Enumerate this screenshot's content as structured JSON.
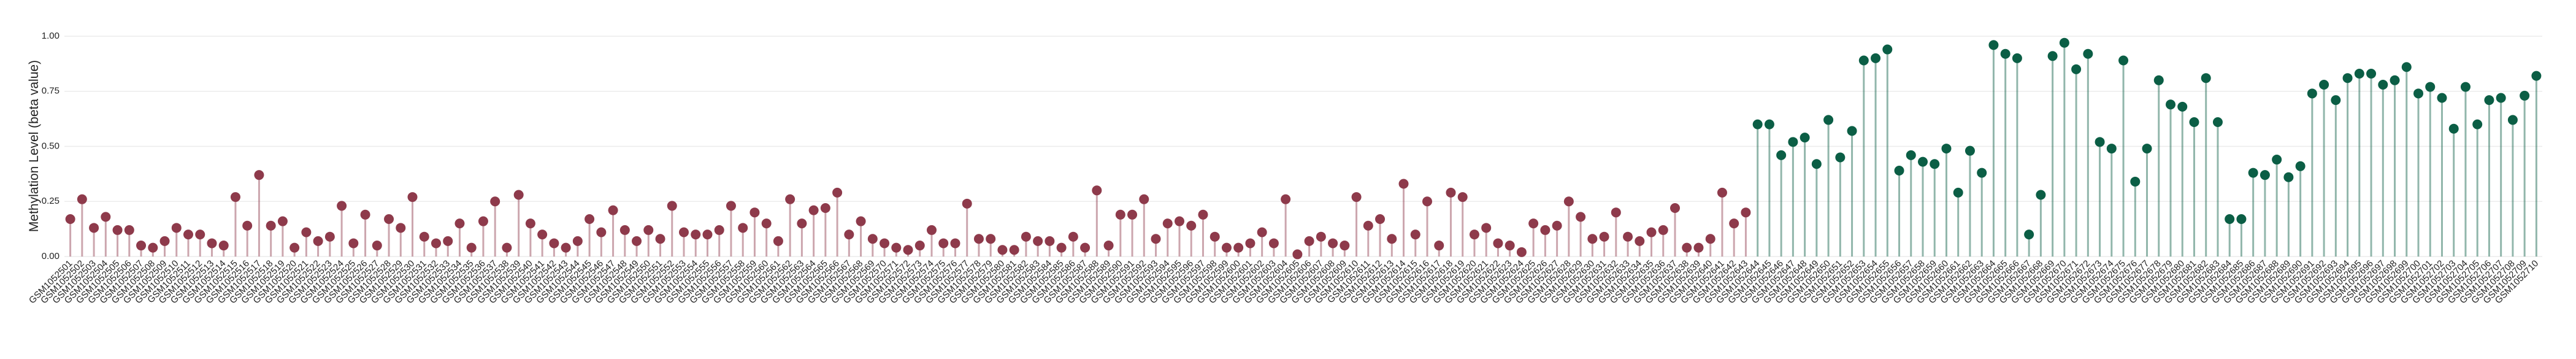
{
  "chart_data": {
    "type": "lollipop",
    "y_label": "Methylation Level (beta value)",
    "ylim": [
      0,
      1
    ],
    "yticks": [
      {
        "value": 0,
        "label": "0.00"
      },
      {
        "value": 0.25,
        "label": "0.25"
      },
      {
        "value": 0.5,
        "label": "0.50"
      },
      {
        "value": 0.75,
        "label": "0.75"
      },
      {
        "value": 1,
        "label": "1.00"
      }
    ],
    "grid": true,
    "categories": [
      "GSM1052501",
      "GSM1052502",
      "GSM1052503",
      "GSM1052504",
      "GSM1052505",
      "GSM1052506",
      "GSM1052507",
      "GSM1052508",
      "GSM1052509",
      "GSM1052510",
      "GSM1052511",
      "GSM1052512",
      "GSM1052513",
      "GSM1052514",
      "GSM1052515",
      "GSM1052516",
      "GSM1052517",
      "GSM1052518",
      "GSM1052519",
      "GSM1052520",
      "GSM1052521",
      "GSM1052522",
      "GSM1052523",
      "GSM1052524",
      "GSM1052525",
      "GSM1052526",
      "GSM1052527",
      "GSM1052528",
      "GSM1052529",
      "GSM1052530",
      "GSM1052531",
      "GSM1052532",
      "GSM1052533",
      "GSM1052534",
      "GSM1052535",
      "GSM1052536",
      "GSM1052537",
      "GSM1052538",
      "GSM1052539",
      "GSM1052540",
      "GSM1052541",
      "GSM1052542",
      "GSM1052543",
      "GSM1052544",
      "GSM1052545",
      "GSM1052546",
      "GSM1052547",
      "GSM1052548",
      "GSM1052549",
      "GSM1052550",
      "GSM1052551",
      "GSM1052552",
      "GSM1052553",
      "GSM1052554",
      "GSM1052555",
      "GSM1052556",
      "GSM1052557",
      "GSM1052558",
      "GSM1052559",
      "GSM1052560",
      "GSM1052561",
      "GSM1052562",
      "GSM1052563",
      "GSM1052564",
      "GSM1052565",
      "GSM1052566",
      "GSM1052567",
      "GSM1052568",
      "GSM1052569",
      "GSM1052570",
      "GSM1052571",
      "GSM1052572",
      "GSM1052573",
      "GSM1052574",
      "GSM1052575",
      "GSM1052576",
      "GSM1052577",
      "GSM1052578",
      "GSM1052579",
      "GSM1052580",
      "GSM1052581",
      "GSM1052582",
      "GSM1052583",
      "GSM1052584",
      "GSM1052585",
      "GSM1052586",
      "GSM1052587",
      "GSM1052588",
      "GSM1052589",
      "GSM1052590",
      "GSM1052591",
      "GSM1052592",
      "GSM1052593",
      "GSM1052594",
      "GSM1052595",
      "GSM1052596",
      "GSM1052597",
      "GSM1052598",
      "GSM1052599",
      "GSM1052600",
      "GSM1052601",
      "GSM1052602",
      "GSM1052603",
      "GSM1052604",
      "GSM1052605",
      "GSM1052606",
      "GSM1052607",
      "GSM1052608",
      "GSM1052609",
      "GSM1052610",
      "GSM1052611",
      "GSM1052612",
      "GSM1052613",
      "GSM1052614",
      "GSM1052615",
      "GSM1052616",
      "GSM1052617",
      "GSM1052618",
      "GSM1052619",
      "GSM1052620",
      "GSM1052621",
      "GSM1052622",
      "GSM1052623",
      "GSM1052624",
      "GSM1052625",
      "GSM1052626",
      "GSM1052627",
      "GSM1052628",
      "GSM1052629",
      "GSM1052630",
      "GSM1052631",
      "GSM1052632",
      "GSM1052633",
      "GSM1052634",
      "GSM1052635",
      "GSM1052636",
      "GSM1052637",
      "GSM1052638",
      "GSM1052639",
      "GSM1052640",
      "GSM1052641",
      "GSM1052642",
      "GSM1052643",
      "GSM1052644",
      "GSM1052645",
      "GSM1052646",
      "GSM1052647",
      "GSM1052648",
      "GSM1052649",
      "GSM1052650",
      "GSM1052651",
      "GSM1052652",
      "GSM1052653",
      "GSM1052654",
      "GSM1052655",
      "GSM1052656",
      "GSM1052657",
      "GSM1052658",
      "GSM1052659",
      "GSM1052660",
      "GSM1052661",
      "GSM1052662",
      "GSM1052663",
      "GSM1052664",
      "GSM1052665",
      "GSM1052666",
      "GSM1052667",
      "GSM1052668",
      "GSM1052669",
      "GSM1052670",
      "GSM1052671",
      "GSM1052672",
      "GSM1052673",
      "GSM1052674",
      "GSM1052675",
      "GSM1052676",
      "GSM1052677",
      "GSM1052678",
      "GSM1052679",
      "GSM1052680",
      "GSM1052681",
      "GSM1052682",
      "GSM1052683",
      "GSM1052684",
      "GSM1052685",
      "GSM1052686",
      "GSM1052687",
      "GSM1052688",
      "GSM1052689",
      "GSM1052690",
      "GSM1052691",
      "GSM1052692",
      "GSM1052693",
      "GSM1052694",
      "GSM1052695",
      "GSM1052696",
      "GSM1052697",
      "GSM1052698",
      "GSM1052699",
      "GSM1052700",
      "GSM1052701",
      "GSM1052702",
      "GSM1052703",
      "GSM1052704",
      "GSM1052705",
      "GSM1052706",
      "GSM1052707",
      "GSM1052708",
      "GSM1052709",
      "GSM1052710"
    ],
    "values": [
      0.17,
      0.26,
      0.13,
      0.18,
      0.12,
      0.12,
      0.05,
      0.04,
      0.07,
      0.13,
      0.1,
      0.1,
      0.06,
      0.05,
      0.27,
      0.14,
      0.37,
      0.14,
      0.16,
      0.04,
      0.11,
      0.07,
      0.09,
      0.23,
      0.06,
      0.19,
      0.05,
      0.17,
      0.13,
      0.27,
      0.09,
      0.06,
      0.07,
      0.15,
      0.04,
      0.16,
      0.25,
      0.04,
      0.28,
      0.15,
      0.1,
      0.06,
      0.04,
      0.07,
      0.17,
      0.11,
      0.21,
      0.12,
      0.07,
      0.12,
      0.08,
      0.23,
      0.11,
      0.1,
      0.1,
      0.12,
      0.23,
      0.13,
      0.2,
      0.15,
      0.07,
      0.26,
      0.15,
      0.21,
      0.22,
      0.29,
      0.1,
      0.16,
      0.08,
      0.06,
      0.04,
      0.03,
      0.05,
      0.12,
      0.06,
      0.06,
      0.24,
      0.08,
      0.08,
      0.03,
      0.03,
      0.09,
      0.07,
      0.07,
      0.04,
      0.09,
      0.04,
      0.3,
      0.05,
      0.19,
      0.19,
      0.26,
      0.08,
      0.15,
      0.16,
      0.14,
      0.19,
      0.09,
      0.04,
      0.04,
      0.06,
      0.11,
      0.06,
      0.26,
      0.01,
      0.07,
      0.09,
      0.06,
      0.05,
      0.27,
      0.14,
      0.17,
      0.08,
      0.33,
      0.1,
      0.25,
      0.05,
      0.29,
      0.27,
      0.1,
      0.13,
      0.06,
      0.05,
      0.02,
      0.15,
      0.12,
      0.14,
      0.25,
      0.18,
      0.08,
      0.09,
      0.2,
      0.09,
      0.07,
      0.11,
      0.12,
      0.22,
      0.04,
      0.04,
      0.08,
      0.29,
      0.15,
      0.2,
      0.6,
      0.6,
      0.46,
      0.52,
      0.54,
      0.42,
      0.62,
      0.45,
      0.57,
      0.89,
      0.9,
      0.94,
      0.39,
      0.46,
      0.43,
      0.42,
      0.49,
      0.29,
      0.48,
      0.38,
      0.96,
      0.92,
      0.9,
      0.1,
      0.28,
      0.91,
      0.97,
      0.85,
      0.92,
      0.52,
      0.49,
      0.89,
      0.34,
      0.49,
      0.8,
      0.69,
      0.68,
      0.61,
      0.81,
      0.61,
      0.17,
      0.17,
      0.38,
      0.37,
      0.44,
      0.36,
      0.41,
      0.74,
      0.78,
      0.71,
      0.81,
      0.83,
      0.83,
      0.78,
      0.8,
      0.86,
      0.74,
      0.77,
      0.72,
      0.58,
      0.77,
      0.6,
      0.71,
      0.72,
      0.62,
      0.73,
      0.82
    ],
    "colors": [
      "#8e3a4b",
      "#8e3a4b",
      "#8e3a4b",
      "#8e3a4b",
      "#8e3a4b",
      "#8e3a4b",
      "#8e3a4b",
      "#8e3a4b",
      "#8e3a4b",
      "#8e3a4b",
      "#8e3a4b",
      "#8e3a4b",
      "#8e3a4b",
      "#8e3a4b",
      "#8e3a4b",
      "#8e3a4b",
      "#8e3a4b",
      "#8e3a4b",
      "#8e3a4b",
      "#8e3a4b",
      "#8e3a4b",
      "#8e3a4b",
      "#8e3a4b",
      "#8e3a4b",
      "#8e3a4b",
      "#8e3a4b",
      "#8e3a4b",
      "#8e3a4b",
      "#8e3a4b",
      "#8e3a4b",
      "#8e3a4b",
      "#8e3a4b",
      "#8e3a4b",
      "#8e3a4b",
      "#8e3a4b",
      "#8e3a4b",
      "#8e3a4b",
      "#8e3a4b",
      "#8e3a4b",
      "#8e3a4b",
      "#8e3a4b",
      "#8e3a4b",
      "#8e3a4b",
      "#8e3a4b",
      "#8e3a4b",
      "#8e3a4b",
      "#8e3a4b",
      "#8e3a4b",
      "#8e3a4b",
      "#8e3a4b",
      "#8e3a4b",
      "#8e3a4b",
      "#8e3a4b",
      "#8e3a4b",
      "#8e3a4b",
      "#8e3a4b",
      "#8e3a4b",
      "#8e3a4b",
      "#8e3a4b",
      "#8e3a4b",
      "#8e3a4b",
      "#8e3a4b",
      "#8e3a4b",
      "#8e3a4b",
      "#8e3a4b",
      "#8e3a4b",
      "#8e3a4b",
      "#8e3a4b",
      "#8e3a4b",
      "#8e3a4b",
      "#8e3a4b",
      "#8e3a4b",
      "#8e3a4b",
      "#8e3a4b",
      "#8e3a4b",
      "#8e3a4b",
      "#8e3a4b",
      "#8e3a4b",
      "#8e3a4b",
      "#8e3a4b",
      "#8e3a4b",
      "#8e3a4b",
      "#8e3a4b",
      "#8e3a4b",
      "#8e3a4b",
      "#8e3a4b",
      "#8e3a4b",
      "#8e3a4b",
      "#8e3a4b",
      "#8e3a4b",
      "#8e3a4b",
      "#8e3a4b",
      "#8e3a4b",
      "#8e3a4b",
      "#8e3a4b",
      "#8e3a4b",
      "#8e3a4b",
      "#8e3a4b",
      "#8e3a4b",
      "#8e3a4b",
      "#8e3a4b",
      "#8e3a4b",
      "#8e3a4b",
      "#8e3a4b",
      "#8e3a4b",
      "#8e3a4b",
      "#8e3a4b",
      "#8e3a4b",
      "#8e3a4b",
      "#8e3a4b",
      "#8e3a4b",
      "#8e3a4b",
      "#8e3a4b",
      "#8e3a4b",
      "#8e3a4b",
      "#8e3a4b",
      "#8e3a4b",
      "#8e3a4b",
      "#8e3a4b",
      "#8e3a4b",
      "#8e3a4b",
      "#8e3a4b",
      "#8e3a4b",
      "#8e3a4b",
      "#8e3a4b",
      "#8e3a4b",
      "#8e3a4b",
      "#8e3a4b",
      "#8e3a4b",
      "#8e3a4b",
      "#8e3a4b",
      "#8e3a4b",
      "#8e3a4b",
      "#8e3a4b",
      "#8e3a4b",
      "#8e3a4b",
      "#8e3a4b",
      "#8e3a4b",
      "#8e3a4b",
      "#8e3a4b",
      "#8e3a4b",
      "#8e3a4b",
      "#8e3a4b",
      "#0b5e45",
      "#0b5e45",
      "#0b5e45",
      "#0b5e45",
      "#0b5e45",
      "#0b5e45",
      "#0b5e45",
      "#0b5e45",
      "#0b5e45",
      "#0b5e45",
      "#0b5e45",
      "#0b5e45",
      "#0b5e45",
      "#0b5e45",
      "#0b5e45",
      "#0b5e45",
      "#0b5e45",
      "#0b5e45",
      "#0b5e45",
      "#0b5e45",
      "#0b5e45",
      "#0b5e45",
      "#0b5e45",
      "#0b5e45",
      "#0b5e45",
      "#0b5e45",
      "#0b5e45",
      "#0b5e45",
      "#0b5e45",
      "#0b5e45",
      "#0b5e45",
      "#0b5e45",
      "#0b5e45",
      "#0b5e45",
      "#0b5e45",
      "#0b5e45",
      "#0b5e45",
      "#0b5e45",
      "#0b5e45",
      "#0b5e45",
      "#0b5e45",
      "#0b5e45",
      "#0b5e45",
      "#0b5e45",
      "#0b5e45",
      "#0b5e45",
      "#0b5e45",
      "#0b5e45",
      "#0b5e45",
      "#0b5e45",
      "#0b5e45",
      "#0b5e45",
      "#0b5e45",
      "#0b5e45",
      "#0b5e45",
      "#0b5e45",
      "#0b5e45",
      "#0b5e45",
      "#0b5e45",
      "#0b5e45",
      "#0b5e45",
      "#0b5e45",
      "#0b5e45",
      "#0b5e45",
      "#0b5e45",
      "#0b5e45",
      "#0b5e45"
    ]
  }
}
